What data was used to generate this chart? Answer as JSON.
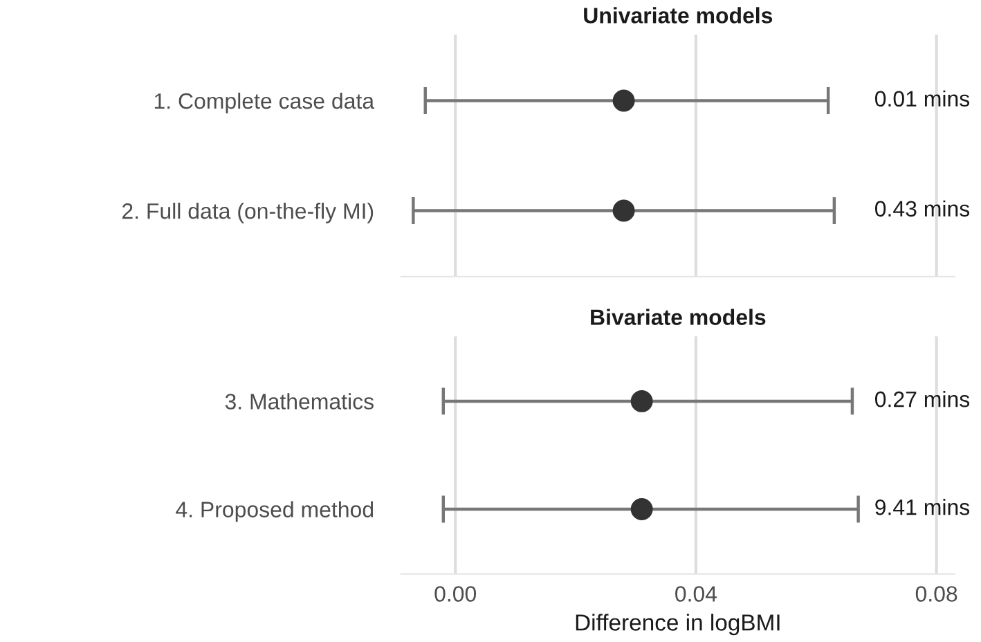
{
  "chart_data": [
    {
      "type": "scatter",
      "orientation": "horizontal",
      "title": "Univariate models",
      "categories": [
        "1. Complete case data",
        "2. Full data (on-the-fly MI)"
      ],
      "series": [
        {
          "color": "#333333",
          "values": [
            0.028,
            0.028
          ],
          "errors": [
            [
              -0.005,
              0.062
            ],
            [
              -0.007,
              0.063
            ]
          ]
        }
      ],
      "xlim": [
        -0.009,
        0.083
      ],
      "xticks": [
        0,
        0.04,
        0.08
      ],
      "tick_labels": "y",
      "grid": "x",
      "marker": "circle",
      "annotations": [
        "0.01 mins",
        "0.43 mins"
      ]
    },
    {
      "type": "scatter",
      "orientation": "horizontal",
      "title": "Bivariate models",
      "categories": [
        "3. Mathematics",
        "4. Proposed method"
      ],
      "xlabel": "Difference in logBMI",
      "series": [
        {
          "color": "#333333",
          "values": [
            0.031,
            0.031
          ],
          "errors": [
            [
              -0.002,
              0.066
            ],
            [
              -0.002,
              0.067
            ]
          ]
        }
      ],
      "xlim": [
        -0.009,
        0.083
      ],
      "xticks": [
        {
          "value": 0,
          "label": "0.00"
        },
        0.04,
        0.08
      ],
      "grid": "x",
      "marker": "circle",
      "annotations": [
        "0.27 mins",
        "9.41 mins"
      ]
    }
  ]
}
